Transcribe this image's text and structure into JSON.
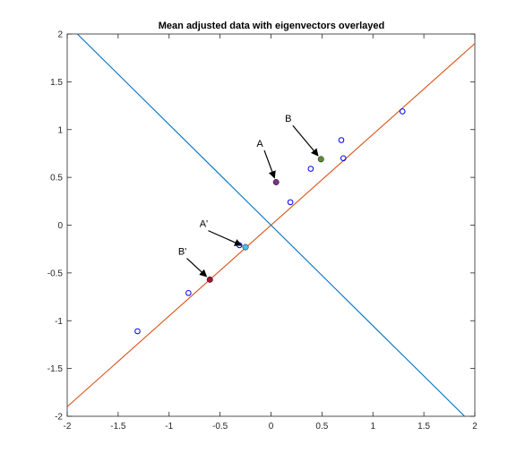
{
  "chart_data": {
    "type": "scatter",
    "title": "Mean adjusted data with eigenvectors overlayed",
    "xlabel": "",
    "ylabel": "",
    "xlim": [
      -2,
      2
    ],
    "ylim": [
      -2,
      2
    ],
    "xticks": [
      -2,
      -1.5,
      -1,
      -0.5,
      0,
      0.5,
      1,
      1.5,
      2
    ],
    "yticks": [
      -2,
      -1.5,
      -1,
      -0.5,
      0,
      0.5,
      1,
      1.5,
      2
    ],
    "xtick_labels": [
      "-2",
      "-1.5",
      "-1",
      "-0.5",
      "0",
      "0.5",
      "1",
      "1.5",
      "2"
    ],
    "ytick_labels": [
      "-2",
      "-1.5",
      "-1",
      "-0.5",
      "0",
      "0.5",
      "1",
      "1.5",
      "2"
    ],
    "grid": false,
    "series": [
      {
        "marker": "open-circle",
        "color": "#0000ff",
        "points": [
          [
            -1.31,
            -1.11
          ],
          [
            -0.81,
            -0.71
          ],
          [
            -0.31,
            -0.21
          ],
          [
            0.19,
            0.24
          ],
          [
            0.39,
            0.59
          ],
          [
            0.69,
            0.89
          ],
          [
            0.71,
            0.7
          ],
          [
            1.29,
            1.19
          ]
        ]
      }
    ],
    "lines": [
      {
        "color": "#d95319",
        "points": [
          [
            -2,
            -1.9
          ],
          [
            2,
            1.9
          ]
        ]
      },
      {
        "color": "#0072bd",
        "points": [
          [
            -1.9,
            2
          ],
          [
            1.9,
            -2
          ]
        ]
      }
    ],
    "highlighted_points": [
      {
        "label": "A",
        "x": 0.05,
        "y": 0.45,
        "color": "#7e2f8e",
        "label_x": -0.11,
        "label_y": 0.82
      },
      {
        "label": "B",
        "x": 0.49,
        "y": 0.69,
        "color": "#5b8c3a",
        "label_x": 0.17,
        "label_y": 1.08
      },
      {
        "label": "A'",
        "x": -0.25,
        "y": -0.23,
        "color": "#4dbeee",
        "label_x": -0.66,
        "label_y": -0.02
      },
      {
        "label": "B'",
        "x": -0.6,
        "y": -0.57,
        "color": "#a2142f",
        "label_x": -0.87,
        "label_y": -0.31
      }
    ]
  }
}
